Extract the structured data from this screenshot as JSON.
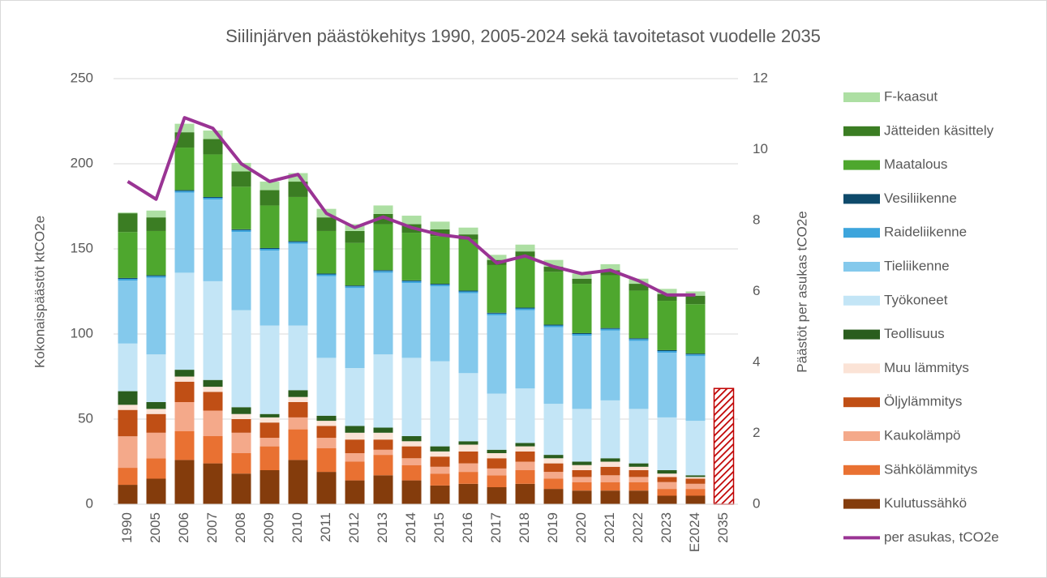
{
  "chart_data": {
    "type": "stacked-bar-line",
    "title": "Siilinjärven päästökehitys 1990, 2005-2024 sekä tavoitetasot vuodelle 2035",
    "y_label": "Kokonaispäästöt ktCO2e",
    "y2_label": "Päästöt per asukas tCO2e",
    "categories": [
      "1990",
      "2005",
      "2006",
      "2007",
      "2008",
      "2009",
      "2010",
      "2011",
      "2012",
      "2013",
      "2014",
      "2015",
      "2016",
      "2017",
      "2018",
      "2019",
      "2020",
      "2021",
      "2022",
      "2023",
      "E2024",
      "2035"
    ],
    "ylim": [
      0,
      250
    ],
    "yticks": [
      0,
      50,
      100,
      150,
      200,
      250
    ],
    "y2lim": [
      0,
      12
    ],
    "y2ticks": [
      0,
      2,
      4,
      6,
      8,
      10,
      12
    ],
    "legend": "right",
    "series": [
      {
        "name": "F-kaasut",
        "color": "#addfa3",
        "values": [
          0.5,
          4,
          5,
          5,
          5,
          5,
          5,
          5,
          4,
          5,
          5,
          4.5,
          4,
          3,
          4,
          4,
          3,
          3.5,
          3,
          3,
          2.5,
          null
        ]
      },
      {
        "name": "Jätteiden käsittely",
        "color": "#3b7d23",
        "values": [
          11,
          8,
          9,
          9,
          9,
          9,
          9,
          8,
          7,
          6,
          5,
          4,
          3,
          3,
          3,
          3,
          3,
          3,
          4,
          4,
          5,
          null
        ]
      },
      {
        "name": "Maatalous",
        "color": "#4ea72e",
        "values": [
          27,
          26,
          25,
          25,
          25,
          25,
          26,
          25,
          25,
          27,
          28,
          28,
          30,
          28,
          30,
          31,
          29,
          31,
          28,
          29,
          29,
          null
        ]
      },
      {
        "name": "Vesiliikenne",
        "color": "#0e4a6b",
        "values": [
          0.5,
          0.5,
          0.5,
          0.5,
          0.5,
          0.5,
          0.5,
          0.5,
          0.5,
          0.5,
          0.5,
          0.5,
          0.5,
          0.5,
          0.5,
          0.5,
          0.5,
          0.5,
          0.5,
          0.5,
          0.5,
          null
        ]
      },
      {
        "name": "Raideliikenne",
        "color": "#3da5dc",
        "values": [
          1,
          1,
          1,
          1,
          1,
          1,
          1,
          1,
          1,
          1,
          1,
          1,
          1,
          1,
          1,
          1,
          1,
          1,
          1,
          1,
          1,
          null
        ]
      },
      {
        "name": "Tieliikenne",
        "color": "#84c9ec",
        "values": [
          37,
          45,
          47,
          48,
          46,
          44,
          48,
          48,
          47,
          48,
          44,
          44,
          47,
          46,
          46,
          45,
          43,
          41,
          40,
          38,
          38,
          null
        ]
      },
      {
        "name": "Työkoneet",
        "color": "#c3e5f6",
        "values": [
          28,
          28,
          57,
          58,
          57,
          52,
          38,
          34,
          34,
          43,
          46,
          50,
          40,
          33,
          32,
          30,
          31,
          34,
          32,
          31,
          32,
          null
        ]
      },
      {
        "name": "Teollisuus",
        "color": "#2a5d1e",
        "values": [
          8,
          4,
          4,
          4,
          4,
          2,
          4,
          3,
          4,
          3,
          3,
          3,
          2,
          2,
          2,
          2,
          2,
          2,
          2,
          2,
          1,
          null
        ]
      },
      {
        "name": "Muu lämmitys",
        "color": "#fbe3d6",
        "values": [
          3,
          3,
          3,
          3,
          3,
          3,
          3,
          3,
          4,
          4,
          3,
          3,
          4,
          3,
          3,
          3,
          3,
          3,
          2,
          2,
          1,
          null
        ]
      },
      {
        "name": "Öljylämmitys",
        "color": "#c04f15",
        "values": [
          15.5,
          11,
          12,
          11,
          8,
          9,
          9,
          7,
          8,
          6,
          7,
          6,
          7,
          6,
          6,
          5,
          4,
          5,
          4,
          3,
          3,
          null
        ]
      },
      {
        "name": "Kaukolämpö",
        "color": "#f4a98a",
        "values": [
          18.5,
          15,
          17,
          15,
          12,
          5,
          7,
          6,
          5,
          3,
          4,
          4,
          5,
          4,
          5,
          4,
          3,
          4,
          3,
          4,
          3,
          null
        ]
      },
      {
        "name": "Sähkölämmitys",
        "color": "#e97132",
        "values": [
          10,
          12,
          17,
          16,
          12,
          14,
          18,
          14,
          11,
          12,
          9,
          7,
          7,
          7,
          8,
          6,
          5,
          5,
          5,
          4,
          4,
          null
        ]
      },
      {
        "name": "Kulutussähkö",
        "color": "#843c0c",
        "values": [
          11.4,
          15,
          26,
          24,
          18,
          20,
          26,
          19,
          14,
          17,
          14,
          11,
          12,
          10,
          12,
          9,
          8,
          8,
          8,
          5,
          5,
          null
        ]
      },
      {
        "name": "per asukas, tCO2e",
        "color": "#9a3494",
        "axis": "y2",
        "dash_from": "E2024",
        "values": [
          9.1,
          8.6,
          10.9,
          10.6,
          9.6,
          9.1,
          9.3,
          8.2,
          7.8,
          8.1,
          7.8,
          7.6,
          7.5,
          6.8,
          7.0,
          6.7,
          6.5,
          6.6,
          6.3,
          5.9,
          5.9,
          3.4
        ]
      }
    ],
    "target_values": [
      null,
      null,
      null,
      null,
      null,
      null,
      null,
      null,
      null,
      null,
      null,
      null,
      null,
      null,
      null,
      null,
      null,
      null,
      null,
      null,
      null,
      68
    ],
    "target_color": "#c00000"
  }
}
